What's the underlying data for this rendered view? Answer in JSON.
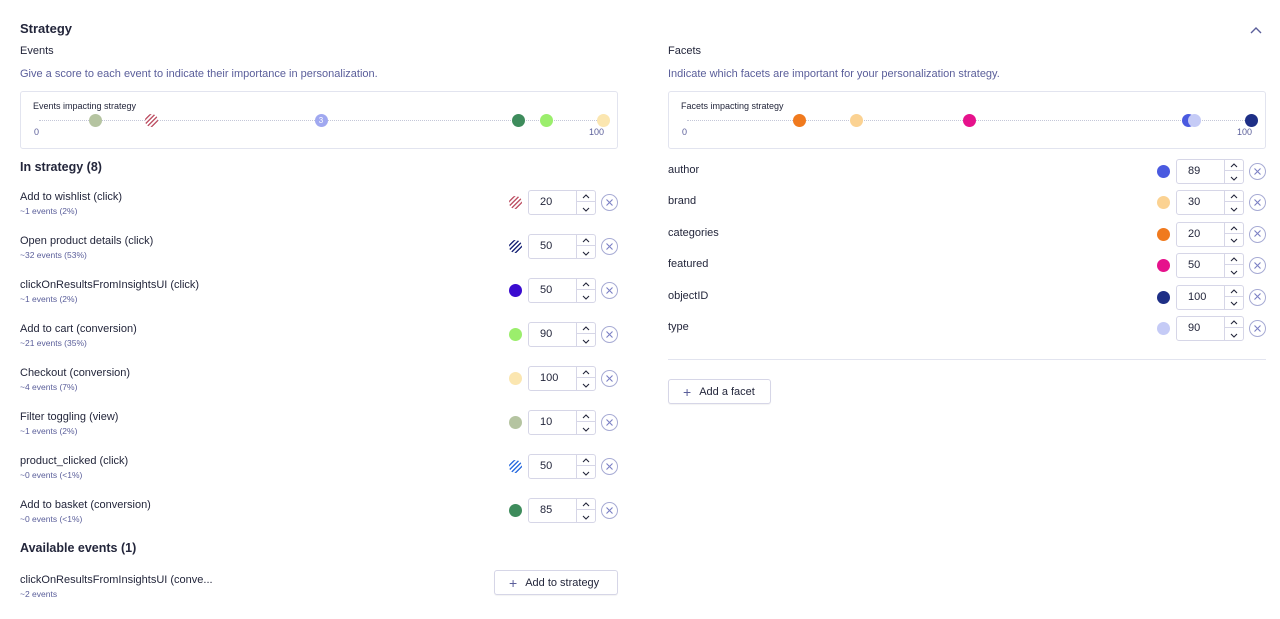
{
  "section": {
    "title": "Strategy",
    "collapse_icon": "chevron-up-icon"
  },
  "events_panel": {
    "label": "Events",
    "description": "Give a score to each event to indicate their importance in personalization.",
    "scale": {
      "title": "Events impacting strategy",
      "min_label": "0",
      "max_label": "100",
      "markers": [
        {
          "value": 10,
          "color": "#b5c4a1",
          "pattern": "solid"
        },
        {
          "value": 20,
          "color": "#c0576a",
          "pattern": "striped"
        },
        {
          "value": 50,
          "color": "#a0a8f0",
          "pattern": "count",
          "count": "3"
        },
        {
          "value": 85,
          "color": "#3e8c5c",
          "pattern": "solid"
        },
        {
          "value": 90,
          "color": "#9bee6c",
          "pattern": "solid"
        },
        {
          "value": 100,
          "color": "#fbe6b0",
          "pattern": "solid"
        }
      ]
    },
    "in_strategy_heading": "In strategy (8)",
    "events": [
      {
        "name": "Add to wishlist (click)",
        "sub": "~1 events (2%)",
        "score": "20",
        "color": "#c0576a",
        "pattern": "striped"
      },
      {
        "name": "Open product details (click)",
        "sub": "~32 events (53%)",
        "score": "50",
        "color": "#1f2a7a",
        "pattern": "striped"
      },
      {
        "name": "clickOnResultsFromInsightsUI (click)",
        "sub": "~1 events (2%)",
        "score": "50",
        "color": "#3a0bd0",
        "pattern": "solid"
      },
      {
        "name": "Add to cart (conversion)",
        "sub": "~21 events (35%)",
        "score": "90",
        "color": "#9bee6c",
        "pattern": "solid"
      },
      {
        "name": "Checkout (conversion)",
        "sub": "~4 events (7%)",
        "score": "100",
        "color": "#fbe6b0",
        "pattern": "solid"
      },
      {
        "name": "Filter toggling (view)",
        "sub": "~1 events (2%)",
        "score": "10",
        "color": "#b5c4a1",
        "pattern": "solid"
      },
      {
        "name": "product_clicked (click)",
        "sub": "~0 events (<1%)",
        "score": "50",
        "color": "#2f6fe0",
        "pattern": "striped"
      },
      {
        "name": "Add to basket (conversion)",
        "sub": "~0 events (<1%)",
        "score": "85",
        "color": "#3e8c5c",
        "pattern": "solid"
      }
    ],
    "available_heading": "Available events (1)",
    "available_events": [
      {
        "name": "clickOnResultsFromInsightsUI (conve...",
        "sub": "~2 events",
        "action_label": "Add to strategy"
      }
    ]
  },
  "facets_panel": {
    "label": "Facets",
    "description": "Indicate which facets are important for your personalization strategy.",
    "scale": {
      "title": "Facets impacting strategy",
      "min_label": "0",
      "max_label": "100",
      "markers": [
        {
          "value": 20,
          "color": "#f07a1e"
        },
        {
          "value": 30,
          "color": "#fbd292"
        },
        {
          "value": 50,
          "color": "#e6128c"
        },
        {
          "value": 89,
          "color": "#4a5ae0"
        },
        {
          "value": 90,
          "color": "#c5cbf6"
        },
        {
          "value": 100,
          "color": "#1e2f86"
        }
      ]
    },
    "facets": [
      {
        "name": "author",
        "score": "89",
        "color": "#4a5ae0"
      },
      {
        "name": "brand",
        "score": "30",
        "color": "#fbd292"
      },
      {
        "name": "categories",
        "score": "20",
        "color": "#f07a1e"
      },
      {
        "name": "featured",
        "score": "50",
        "color": "#e6128c"
      },
      {
        "name": "objectID",
        "score": "100",
        "color": "#1e2f86"
      },
      {
        "name": "type",
        "score": "90",
        "color": "#c5cbf6"
      }
    ],
    "add_facet_label": "Add a facet"
  }
}
